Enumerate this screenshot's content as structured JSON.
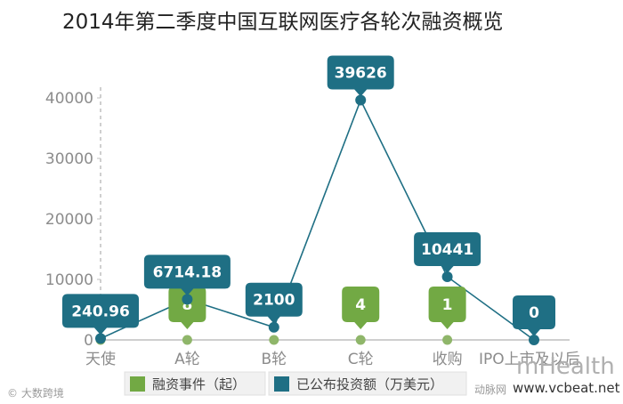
{
  "chart_data": {
    "type": "line",
    "title": "2014年第二季度中国互联网医疗各轮次融资概览",
    "categories": [
      "天使",
      "A轮",
      "B轮",
      "C轮",
      "收购",
      "IPO上市及以后"
    ],
    "y_ticks": [
      "0",
      "10000",
      "20000",
      "30000",
      "40000"
    ],
    "ylim": [
      0,
      40000
    ],
    "legend_position": "bottom",
    "series": [
      {
        "name": "融资事件（起）",
        "color": "#72a944",
        "values": [
          null,
          8,
          null,
          4,
          1,
          null
        ],
        "labels": [
          "",
          "8",
          "",
          "4",
          "1",
          ""
        ]
      },
      {
        "name": "已公布投资额（万美元）",
        "color": "#1f6f84",
        "values": [
          240.96,
          6714.18,
          2100,
          39626,
          10441,
          0
        ],
        "labels": [
          "240.96",
          "6714.18",
          "2100",
          "39626",
          "10441",
          "0"
        ]
      }
    ]
  },
  "watermarks": {
    "left": "© 大数跨境",
    "right_big": "mHealth",
    "right_source": "动脉网",
    "right_url": "www.vcbeat.net"
  },
  "colors": {
    "green": "#72a944",
    "teal": "#1f6f84",
    "axis": "#bfbfbf"
  }
}
